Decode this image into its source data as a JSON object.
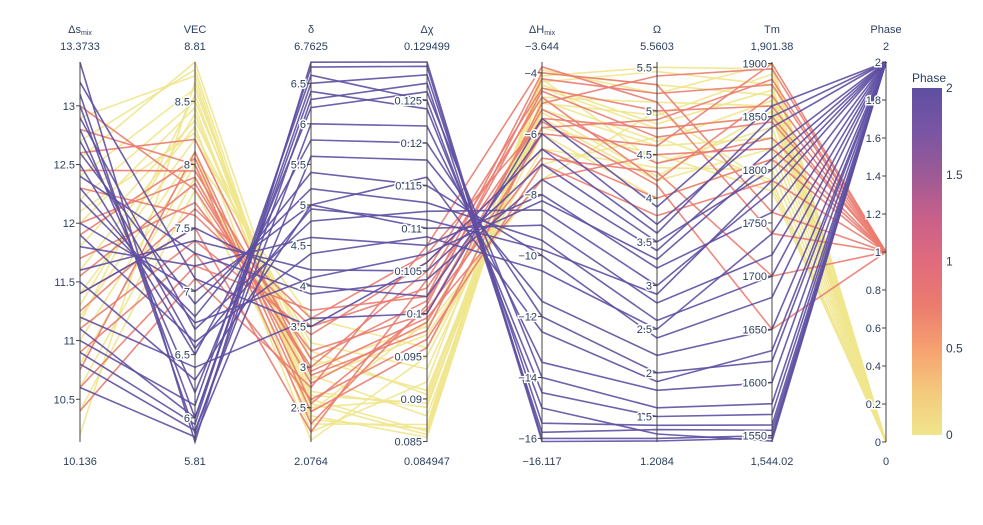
{
  "chart_data": {
    "type": "parallel_coordinates",
    "title": "",
    "color_by": "Phase",
    "colorscale": [
      "#f0e68c",
      "#f4c97c",
      "#f6a070",
      "#eb7b6f",
      "#e06b7d",
      "#c9608a",
      "#9c5a96",
      "#7a55a4",
      "#5e4fa2"
    ],
    "line_colors": {
      "phase_0": "#f0e68c",
      "phase_1": "#eb7b6f",
      "phase_2": "#5e4fa2"
    },
    "axes": [
      {
        "label": "ΔSmix",
        "label_main": "Δs",
        "label_sub": "mix",
        "range": [
          10.136,
          13.3733
        ],
        "range_text": [
          "10.136",
          "13.3733"
        ],
        "ticks": [
          "10.5",
          "11",
          "11.5",
          "12",
          "12.5",
          "13"
        ]
      },
      {
        "label": "VEC",
        "label_main": "VEC",
        "label_sub": "",
        "range": [
          5.81,
          8.81
        ],
        "range_text": [
          "5.81",
          "8.81"
        ],
        "ticks": [
          "6",
          "6.5",
          "7",
          "7.5",
          "8",
          "8.5"
        ]
      },
      {
        "label": "δ",
        "label_main": "δ",
        "label_sub": "",
        "range": [
          2.0764,
          6.7625
        ],
        "range_text": [
          "2.0764",
          "6.7625"
        ],
        "ticks": [
          "2.5",
          "3",
          "3.5",
          "4",
          "4.5",
          "5",
          "5.5",
          "6",
          "6.5"
        ]
      },
      {
        "label": "Δχ",
        "label_main": "Δχ",
        "label_sub": "",
        "range": [
          0.084947,
          0.129499
        ],
        "range_text": [
          "0.084947",
          "0.129499"
        ],
        "ticks": [
          "0.085",
          "0.09",
          "0.095",
          "0.1",
          "0.105",
          "0.11",
          "0.115",
          "0.12",
          "0.125"
        ]
      },
      {
        "label": "ΔHmix",
        "label_main": "ΔH",
        "label_sub": "mix",
        "range": [
          -16.117,
          -3.644
        ],
        "range_text": [
          "−16.117",
          "−3.644"
        ],
        "ticks": [
          "−16",
          "−14",
          "−12",
          "−10",
          "−8",
          "−6",
          "−4"
        ]
      },
      {
        "label": "Ω",
        "label_main": "Ω",
        "label_sub": "",
        "range": [
          1.2084,
          5.5603
        ],
        "range_text": [
          "1.2084",
          "5.5603"
        ],
        "ticks": [
          "1.5",
          "2",
          "2.5",
          "3",
          "3.5",
          "4",
          "4.5",
          "5",
          "5.5"
        ]
      },
      {
        "label": "Tm",
        "label_main": "Tm",
        "label_sub": "",
        "range": [
          1544.02,
          1901.38
        ],
        "range_text": [
          "1,544.02",
          "1,901.38"
        ],
        "ticks": [
          "1550",
          "1600",
          "1650",
          "1700",
          "1750",
          "1800",
          "1850",
          "1900"
        ]
      },
      {
        "label": "Phase",
        "label_main": "Phase",
        "label_sub": "",
        "range": [
          0,
          2
        ],
        "range_text": [
          "0",
          "2"
        ],
        "ticks": [
          "0",
          "0.2",
          "0.4",
          "0.6",
          "0.8",
          "1",
          "1.2",
          "1.4",
          "1.6",
          "1.8",
          "2"
        ]
      }
    ],
    "records": [
      {
        "phase": 0,
        "values": [
          12.55,
          8.81,
          2.6,
          0.0862,
          -4.1,
          5.5,
          1895,
          0
        ]
      },
      {
        "phase": 0,
        "values": [
          12.7,
          8.75,
          2.4,
          0.0855,
          -4.3,
          5.45,
          1880,
          0
        ]
      },
      {
        "phase": 0,
        "values": [
          12.9,
          8.7,
          2.3,
          0.087,
          -4.0,
          5.3,
          1870,
          0
        ]
      },
      {
        "phase": 0,
        "values": [
          12.4,
          8.6,
          2.7,
          0.089,
          -4.8,
          5.1,
          1860,
          0
        ]
      },
      {
        "phase": 0,
        "values": [
          12.2,
          8.5,
          2.9,
          0.088,
          -5.0,
          4.95,
          1890,
          0
        ]
      },
      {
        "phase": 0,
        "values": [
          12.0,
          8.45,
          2.5,
          0.09,
          -4.5,
          4.8,
          1850,
          0
        ]
      },
      {
        "phase": 0,
        "values": [
          11.8,
          8.35,
          3.1,
          0.091,
          -5.2,
          4.6,
          1830,
          0
        ]
      },
      {
        "phase": 0,
        "values": [
          11.6,
          8.3,
          2.2,
          0.092,
          -4.2,
          4.4,
          1840,
          0
        ]
      },
      {
        "phase": 0,
        "values": [
          11.4,
          8.2,
          3.3,
          0.0935,
          -5.5,
          4.2,
          1820,
          0
        ]
      },
      {
        "phase": 0,
        "values": [
          11.2,
          8.1,
          2.1,
          0.095,
          -6.0,
          4.0,
          1810,
          0
        ]
      },
      {
        "phase": 0,
        "values": [
          11.0,
          8.05,
          3.6,
          0.096,
          -6.5,
          4.35,
          1800,
          0
        ]
      },
      {
        "phase": 0,
        "values": [
          10.8,
          8.0,
          2.85,
          0.0975,
          -7.0,
          4.7,
          1790,
          0
        ]
      },
      {
        "phase": 0,
        "values": [
          10.6,
          7.9,
          3.0,
          0.0985,
          -7.5,
          5.0,
          1785,
          0
        ]
      },
      {
        "phase": 0,
        "values": [
          10.4,
          7.8,
          2.45,
          0.099,
          -5.8,
          4.5,
          1780,
          0
        ]
      },
      {
        "phase": 0,
        "values": [
          10.2,
          8.65,
          2.35,
          0.0865,
          -3.9,
          5.2,
          1900,
          0
        ]
      },
      {
        "phase": 0,
        "values": [
          11.15,
          8.55,
          2.55,
          0.0858,
          -4.4,
          4.85,
          1875,
          0
        ]
      },
      {
        "phase": 0,
        "values": [
          11.3,
          8.4,
          2.65,
          0.0895,
          -4.9,
          4.65,
          1865,
          0
        ]
      },
      {
        "phase": 0,
        "values": [
          12.1,
          8.25,
          3.2,
          0.0905,
          -5.3,
          4.25,
          1855,
          0
        ]
      },
      {
        "phase": 1,
        "values": [
          12.6,
          8.2,
          2.9,
          0.098,
          -5.0,
          5.4,
          1895,
          1
        ]
      },
      {
        "phase": 1,
        "values": [
          12.8,
          8.0,
          2.3,
          0.101,
          -4.2,
          5.2,
          1880,
          1
        ]
      },
      {
        "phase": 1,
        "values": [
          13.0,
          7.8,
          3.0,
          0.105,
          -4.5,
          5.0,
          1860,
          1
        ]
      },
      {
        "phase": 1,
        "values": [
          12.3,
          7.6,
          3.5,
          0.103,
          -5.5,
          4.8,
          1850,
          1
        ]
      },
      {
        "phase": 1,
        "values": [
          12.0,
          7.9,
          2.8,
          0.099,
          -6.0,
          4.6,
          1900,
          1
        ]
      },
      {
        "phase": 1,
        "values": [
          11.7,
          7.7,
          3.2,
          0.1,
          -5.2,
          4.4,
          1830,
          1
        ]
      },
      {
        "phase": 1,
        "values": [
          11.4,
          7.5,
          2.2,
          0.104,
          -4.8,
          4.2,
          1870,
          1
        ]
      },
      {
        "phase": 1,
        "values": [
          11.1,
          7.4,
          3.4,
          0.106,
          -6.5,
          4.0,
          1810,
          1
        ]
      },
      {
        "phase": 1,
        "values": [
          10.9,
          7.3,
          2.6,
          0.097,
          -7.0,
          3.8,
          1790,
          1
        ]
      },
      {
        "phase": 1,
        "values": [
          10.6,
          7.2,
          3.7,
          0.102,
          -4.0,
          5.3,
          1760,
          1
        ]
      },
      {
        "phase": 1,
        "values": [
          10.4,
          7.1,
          2.75,
          0.108,
          -3.8,
          5.1,
          1740,
          1
        ]
      },
      {
        "phase": 1,
        "values": [
          11.9,
          8.05,
          2.45,
          0.096,
          -5.8,
          4.9,
          1885,
          1
        ]
      },
      {
        "phase": 1,
        "values": [
          12.45,
          7.95,
          3.1,
          0.1015,
          -4.6,
          4.7,
          1845,
          1
        ]
      },
      {
        "phase": 1,
        "values": [
          11.55,
          7.85,
          2.95,
          0.0995,
          -7.5,
          4.5,
          1820,
          1
        ]
      },
      {
        "phase": 1,
        "values": [
          10.75,
          8.1,
          2.55,
          0.1005,
          -6.8,
          4.3,
          1700,
          1
        ]
      },
      {
        "phase": 1,
        "values": [
          11.25,
          7.65,
          3.6,
          0.107,
          -5.6,
          4.15,
          1650,
          1
        ]
      },
      {
        "phase": 2,
        "values": [
          13.37,
          5.81,
          6.76,
          0.1295,
          -16.0,
          1.25,
          1550,
          2
        ]
      },
      {
        "phase": 2,
        "values": [
          13.0,
          6.0,
          6.5,
          0.128,
          -15.5,
          1.4,
          1560,
          2
        ]
      },
      {
        "phase": 2,
        "values": [
          12.8,
          6.2,
          6.2,
          0.126,
          -14.0,
          1.6,
          1580,
          2
        ]
      },
      {
        "phase": 2,
        "values": [
          12.5,
          6.5,
          5.8,
          0.12,
          -12.0,
          2.0,
          1620,
          2
        ]
      },
      {
        "phase": 2,
        "values": [
          12.2,
          6.8,
          5.4,
          0.115,
          -10.0,
          2.4,
          1680,
          2
        ]
      },
      {
        "phase": 2,
        "values": [
          12.0,
          7.0,
          5.0,
          0.11,
          -9.0,
          2.8,
          1720,
          2
        ]
      },
      {
        "phase": 2,
        "values": [
          11.8,
          7.2,
          4.6,
          0.108,
          -8.0,
          3.2,
          1760,
          2
        ]
      },
      {
        "phase": 2,
        "values": [
          11.6,
          7.4,
          4.2,
          0.105,
          -7.0,
          3.5,
          1800,
          2
        ]
      },
      {
        "phase": 2,
        "values": [
          11.4,
          7.5,
          4.0,
          0.102,
          -6.0,
          3.7,
          1840,
          2
        ]
      },
      {
        "phase": 2,
        "values": [
          11.2,
          6.4,
          3.6,
          0.1,
          -5.5,
          3.9,
          1860,
          2
        ]
      },
      {
        "phase": 2,
        "values": [
          11.0,
          6.1,
          6.6,
          0.125,
          -15.0,
          1.3,
          1545,
          2
        ]
      },
      {
        "phase": 2,
        "values": [
          10.8,
          5.9,
          6.0,
          0.122,
          -13.5,
          1.8,
          1600,
          2
        ]
      },
      {
        "phase": 2,
        "values": [
          10.6,
          5.85,
          5.6,
          0.118,
          -11.5,
          2.2,
          1650,
          2
        ]
      },
      {
        "phase": 2,
        "values": [
          12.9,
          6.7,
          4.8,
          0.112,
          -8.5,
          3.0,
          1780,
          2
        ]
      },
      {
        "phase": 2,
        "values": [
          12.6,
          6.9,
          5.2,
          0.113,
          -9.5,
          2.6,
          1700,
          2
        ]
      },
      {
        "phase": 2,
        "values": [
          13.2,
          7.1,
          3.5,
          0.106,
          -6.5,
          3.6,
          1850,
          2
        ]
      },
      {
        "phase": 2,
        "values": [
          12.4,
          7.3,
          3.9,
          0.104,
          -7.5,
          3.4,
          1820,
          2
        ]
      },
      {
        "phase": 2,
        "values": [
          11.9,
          6.6,
          4.4,
          0.109,
          -10.5,
          2.5,
          1740,
          2
        ]
      },
      {
        "phase": 2,
        "values": [
          11.5,
          6.3,
          5.0,
          0.116,
          -12.5,
          1.9,
          1630,
          2
        ]
      },
      {
        "phase": 2,
        "values": [
          11.1,
          6.0,
          6.4,
          0.124,
          -14.5,
          1.5,
          1570,
          2
        ]
      },
      {
        "phase": 2,
        "values": [
          10.9,
          5.95,
          6.7,
          0.129,
          -16.1,
          1.22,
          1548,
          2
        ]
      },
      {
        "phase": 2,
        "values": [
          12.7,
          6.55,
          4.95,
          0.111,
          -9.8,
          2.9,
          1790,
          2
        ]
      },
      {
        "phase": 2,
        "values": [
          12.3,
          6.75,
          4.1,
          0.107,
          -8.2,
          3.3,
          1810,
          2
        ]
      },
      {
        "phase": 2,
        "values": [
          13.1,
          5.88,
          6.3,
          0.127,
          -15.8,
          1.35,
          1555,
          2
        ]
      }
    ],
    "colorbar": {
      "title": "Phase",
      "range": [
        0,
        2
      ],
      "ticks": [
        "0",
        "0.5",
        "1",
        "1.5",
        "2"
      ]
    }
  }
}
